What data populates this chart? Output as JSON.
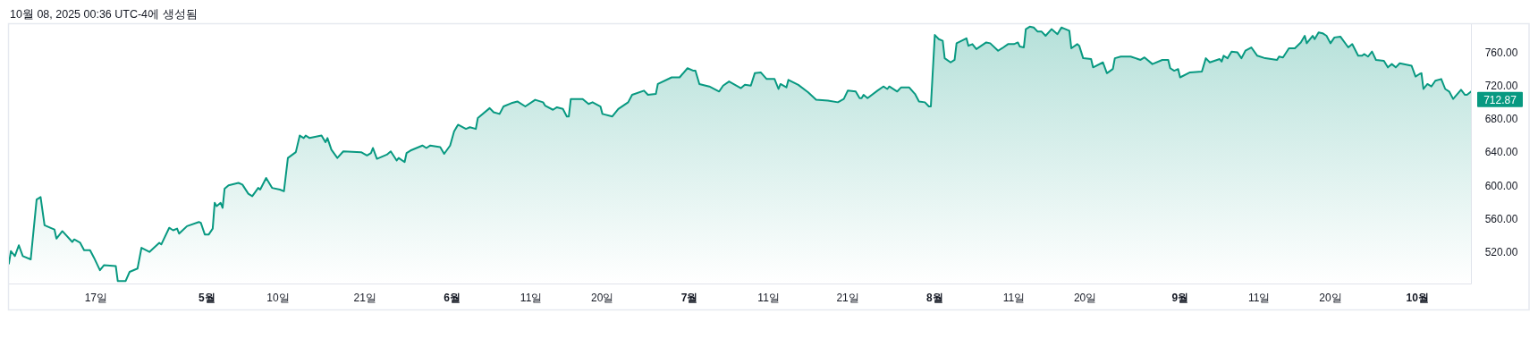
{
  "chart_data": {
    "type": "area",
    "color": "#089981",
    "annotations": [
      "10월 08, 2025 00:36 UTC-4에 생성됨",
      {
        "text": "712.87",
        "x": "2025-10-07T18:00",
        "y": 712.87
      }
    ],
    "xlim": [
      "2025-04-06",
      "2025-10-07T18:00"
    ],
    "ylim": [
      482,
      794
    ],
    "xticks": [
      {
        "value": "2025-04-17",
        "label": "17일"
      },
      {
        "value": "2025-05-01",
        "label": "5월"
      },
      {
        "value": "2025-05-10",
        "label": "10일"
      },
      {
        "value": "2025-05-21",
        "label": "21일"
      },
      {
        "value": "2025-06-01",
        "label": "6월"
      },
      {
        "value": "2025-06-11",
        "label": "11일"
      },
      {
        "value": "2025-06-20",
        "label": "20일"
      },
      {
        "value": "2025-07-01",
        "label": "7월"
      },
      {
        "value": "2025-07-11",
        "label": "11일"
      },
      {
        "value": "2025-07-21",
        "label": "21일"
      },
      {
        "value": "2025-08-01",
        "label": "8월"
      },
      {
        "value": "2025-08-11",
        "label": "11일"
      },
      {
        "value": "2025-08-20",
        "label": "20일"
      },
      {
        "value": "2025-09-01",
        "label": "9월"
      },
      {
        "value": "2025-09-11",
        "label": "11일"
      },
      {
        "value": "2025-09-20",
        "label": "20일"
      },
      {
        "value": "2025-10-01",
        "label": "10월"
      }
    ],
    "yticks": [
      {
        "value": 520,
        "label": "520.00"
      },
      {
        "value": 560,
        "label": "560.00"
      },
      {
        "value": 600,
        "label": "600.00"
      },
      {
        "value": 640,
        "label": "640.00"
      },
      {
        "value": 680,
        "label": "680.00"
      },
      {
        "value": 720,
        "label": "720.00"
      },
      {
        "value": 760,
        "label": "760.00"
      }
    ],
    "x": [
      "2025-04-06",
      "2025-04-06T06:00",
      "2025-04-06T18:00",
      "2025-04-07T06:00",
      "2025-04-07T18:00",
      "2025-04-08T18:00",
      "2025-04-09T12:00",
      "2025-04-10",
      "2025-04-10T12:00",
      "2025-04-11T18:00",
      "2025-04-12",
      "2025-04-12T18:00",
      "2025-04-14",
      "2025-04-14T06:00",
      "2025-04-15",
      "2025-04-15T12:00",
      "2025-04-16T06:00",
      "2025-04-16T18:00",
      "2025-04-17T12:00",
      "2025-04-18",
      "2025-04-19T12:00",
      "2025-04-19T18:00",
      "2025-04-20T18:00",
      "2025-04-21T06:00",
      "2025-04-22T06:00",
      "2025-04-22T18:00",
      "2025-04-23T18:00",
      "2025-04-25",
      "2025-04-25T06:00",
      "2025-04-26T06:00",
      "2025-04-26T18:00",
      "2025-04-27T06:00",
      "2025-04-27T12:00",
      "2025-04-28T12:00",
      "2025-04-30",
      "2025-04-30T06:00",
      "2025-04-30T18:00",
      "2025-05-01T06:00",
      "2025-05-01T18:00",
      "2025-05-02",
      "2025-05-02T06:00",
      "2025-05-02T18:00",
      "2025-05-03",
      "2025-05-03T06:00",
      "2025-05-03T18:00",
      "2025-05-05",
      "2025-05-05T12:00",
      "2025-05-06T06:00",
      "2025-05-06T18:00",
      "2025-05-07T12:00",
      "2025-05-07T18:00",
      "2025-05-08T12:00",
      "2025-05-09T06:00",
      "2025-05-10T06:00",
      "2025-05-10T18:00",
      "2025-05-11T06:00",
      "2025-05-12T06:00",
      "2025-05-12T18:00",
      "2025-05-13T06:00",
      "2025-05-13T12:00",
      "2025-05-14",
      "2025-05-15T12:00",
      "2025-05-16",
      "2025-05-16T06:00",
      "2025-05-16T18:00",
      "2025-05-17T12:00",
      "2025-05-18T06:00",
      "2025-05-20T12:00",
      "2025-05-21T06:00",
      "2025-05-21T18:00",
      "2025-05-22",
      "2025-05-22T12:00",
      "2025-05-23T18:00",
      "2025-05-24T06:00",
      "2025-05-25",
      "2025-05-25T06:00",
      "2025-05-26",
      "2025-05-26T06:00",
      "2025-05-26T18:00",
      "2025-05-28T06:00",
      "2025-05-28T18:00",
      "2025-05-29T06:00",
      "2025-05-30T12:00",
      "2025-05-31",
      "2025-05-31T18:00",
      "2025-06-01T06:00",
      "2025-06-01T18:00",
      "2025-06-02T18:00",
      "2025-06-03T06:00",
      "2025-06-04",
      "2025-06-04T06:00",
      "2025-06-05T18:00",
      "2025-06-06T06:00",
      "2025-06-07",
      "2025-06-07T12:00",
      "2025-06-08T12:00",
      "2025-06-09T06:00",
      "2025-06-10T06:00",
      "2025-06-11T12:00",
      "2025-06-12T12:00",
      "2025-06-12T18:00",
      "2025-06-13T18:00",
      "2025-06-14T06:00",
      "2025-06-15",
      "2025-06-15T12:00",
      "2025-06-15T18:00",
      "2025-06-16",
      "2025-06-17T12:00",
      "2025-06-18T06:00",
      "2025-06-18T18:00",
      "2025-06-19T18:00",
      "2025-06-20",
      "2025-06-21T06:00",
      "2025-06-22",
      "2025-06-23T06:00",
      "2025-06-23T18:00",
      "2025-06-25T06:00",
      "2025-06-25T18:00",
      "2025-06-26T18:00",
      "2025-06-27",
      "2025-06-28T18:00",
      "2025-06-29T18:00",
      "2025-06-30T18:00",
      "2025-07-01T12:00",
      "2025-07-01T18:00",
      "2025-07-02T06:00",
      "2025-07-03T12:00",
      "2025-07-04T18:00",
      "2025-07-05T06:00",
      "2025-07-06",
      "2025-07-07T12:00",
      "2025-07-08",
      "2025-07-08T18:00",
      "2025-07-09T06:00",
      "2025-07-10",
      "2025-07-10T18:00",
      "2025-07-11T18:00",
      "2025-07-12T06:00",
      "2025-07-12T12:00",
      "2025-07-13T06:00",
      "2025-07-13T12:00",
      "2025-07-14T18:00",
      "2025-07-16",
      "2025-07-17",
      "2025-07-18T12:00",
      "2025-07-19T18:00",
      "2025-07-20T12:00",
      "2025-07-21",
      "2025-07-22",
      "2025-07-22T12:00",
      "2025-07-22T18:00",
      "2025-07-23",
      "2025-07-23T12:00",
      "2025-07-24T18:00",
      "2025-07-25T12:00",
      "2025-07-26",
      "2025-07-26T06:00",
      "2025-07-27T06:00",
      "2025-07-27T18:00",
      "2025-07-28T18:00",
      "2025-07-29T12:00",
      "2025-07-30",
      "2025-07-30T18:00",
      "2025-07-31T06:00",
      "2025-07-31T12:00",
      "2025-08-01",
      "2025-08-01T12:00",
      "2025-08-02",
      "2025-08-02T06:00",
      "2025-08-03",
      "2025-08-03T12:00",
      "2025-08-03T18:00",
      "2025-08-05",
      "2025-08-05T06:00",
      "2025-08-05T18:00",
      "2025-08-06T06:00",
      "2025-08-07T12:00",
      "2025-08-08",
      "2025-08-09",
      "2025-08-09T12:00",
      "2025-08-10T06:00",
      "2025-08-11",
      "2025-08-11T12:00",
      "2025-08-11T18:00",
      "2025-08-12T06:00",
      "2025-08-12T12:00",
      "2025-08-13",
      "2025-08-13T12:00",
      "2025-08-14",
      "2025-08-14T12:00",
      "2025-08-15",
      "2025-08-15T18:00",
      "2025-08-16T12:00",
      "2025-08-17",
      "2025-08-17T06:00",
      "2025-08-18",
      "2025-08-18T06:00",
      "2025-08-19",
      "2025-08-19T06:00",
      "2025-08-19T18:00",
      "2025-08-20T18:00",
      "2025-08-21",
      "2025-08-22T06:00",
      "2025-08-22T18:00",
      "2025-08-23T12:00",
      "2025-08-23T18:00",
      "2025-08-24T12:00",
      "2025-08-25T18:00",
      "2025-08-27",
      "2025-08-27T12:00",
      "2025-08-28T12:00",
      "2025-08-29T18:00",
      "2025-08-30T12:00",
      "2025-08-30T18:00",
      "2025-08-31T06:00",
      "2025-08-31T18:00",
      "2025-09-01",
      "2025-09-02T06:00",
      "2025-09-03T18:00",
      "2025-09-04T06:00",
      "2025-09-04T18:00",
      "2025-09-06",
      "2025-09-06T06:00",
      "2025-09-06T12:00",
      "2025-09-07",
      "2025-09-07T12:00",
      "2025-09-08T06:00",
      "2025-09-08T18:00",
      "2025-09-09T06:00",
      "2025-09-10",
      "2025-09-10T18:00",
      "2025-09-11T18:00",
      "2025-09-13T06:00",
      "2025-09-13T12:00",
      "2025-09-14",
      "2025-09-14T18:00",
      "2025-09-15T12:00",
      "2025-09-16T06:00",
      "2025-09-16T18:00",
      "2025-09-17",
      "2025-09-17T18:00",
      "2025-09-18",
      "2025-09-18T12:00",
      "2025-09-19",
      "2025-09-19T12:00",
      "2025-09-20",
      "2025-09-20T12:00",
      "2025-09-21T06:00",
      "2025-09-22T06:00",
      "2025-09-22T18:00",
      "2025-09-23T12:00",
      "2025-09-24",
      "2025-09-24T06:00",
      "2025-09-24T18:00",
      "2025-09-25T06:00",
      "2025-09-25T18:00",
      "2025-09-26T18:00",
      "2025-09-27T06:00",
      "2025-09-27T18:00",
      "2025-09-28T06:00",
      "2025-09-28T18:00",
      "2025-09-30T06:00",
      "2025-09-30T18:00",
      "2025-10-01T06:00",
      "2025-10-01T12:00",
      "2025-10-01T18:00",
      "2025-10-02T06:00",
      "2025-10-02T18:00",
      "2025-10-03T06:00",
      "2025-10-04",
      "2025-10-04T12:00",
      "2025-10-05",
      "2025-10-05T12:00",
      "2025-10-06T12:00",
      "2025-10-07",
      "2025-10-07T06:00",
      "2025-10-07T18:00"
    ],
    "values": [
      506,
      521,
      515,
      528,
      515,
      511,
      583,
      586,
      552,
      547,
      536,
      545,
      532,
      535,
      531,
      522,
      522,
      513,
      498,
      504,
      503,
      485,
      485,
      496,
      500,
      525,
      520,
      531,
      529,
      549,
      546,
      548,
      542,
      551,
      556,
      555,
      541,
      541,
      548,
      579,
      575,
      579,
      573,
      596,
      600,
      603,
      601,
      590,
      587,
      597,
      595,
      609,
      597,
      595,
      593,
      633,
      640,
      660,
      657,
      660,
      657,
      660,
      652,
      657,
      643,
      633,
      641,
      640,
      636,
      639,
      645,
      632,
      637,
      641,
      630,
      633,
      628,
      639,
      642,
      648,
      645,
      648,
      646,
      638,
      648,
      665,
      673,
      668,
      670,
      668,
      681,
      693,
      688,
      686,
      695,
      699,
      701,
      695,
      703,
      700,
      696,
      691,
      694,
      692,
      683,
      683,
      704,
      704,
      698,
      700,
      695,
      686,
      683,
      692,
      700,
      709,
      714,
      709,
      710,
      722,
      730,
      730,
      741,
      738,
      738,
      722,
      719,
      713,
      720,
      725,
      717,
      721,
      720,
      735,
      736,
      728,
      728,
      716,
      722,
      718,
      727,
      721,
      712,
      703,
      702,
      700,
      704,
      714,
      713,
      705,
      705,
      709,
      705,
      714,
      719,
      716,
      719,
      713,
      718,
      718,
      710,
      701,
      700,
      695,
      695,
      781,
      776,
      774,
      753,
      748,
      751,
      771,
      777,
      768,
      770,
      764,
      772,
      771,
      762,
      765,
      770,
      770,
      772,
      767,
      766,
      788,
      791,
      790,
      785,
      785,
      780,
      788,
      782,
      790,
      789,
      786,
      765,
      770,
      768,
      753,
      752,
      742,
      748,
      735,
      740,
      753,
      755,
      755,
      751,
      754,
      746,
      751,
      751,
      741,
      738,
      740,
      730,
      736,
      737,
      753,
      748,
      752,
      749,
      756,
      753,
      761,
      760,
      753,
      762,
      766,
      756,
      753,
      751,
      755,
      754,
      765,
      765,
      772,
      780,
      771,
      780,
      776,
      784,
      783,
      780,
      771,
      778,
      779,
      766,
      770,
      756,
      756,
      758,
      755,
      761,
      751,
      750,
      742,
      746,
      742,
      747,
      744,
      731,
      734,
      735,
      716,
      722,
      719,
      726,
      728,
      716,
      713,
      704,
      715,
      709,
      709,
      712.87
    ]
  }
}
